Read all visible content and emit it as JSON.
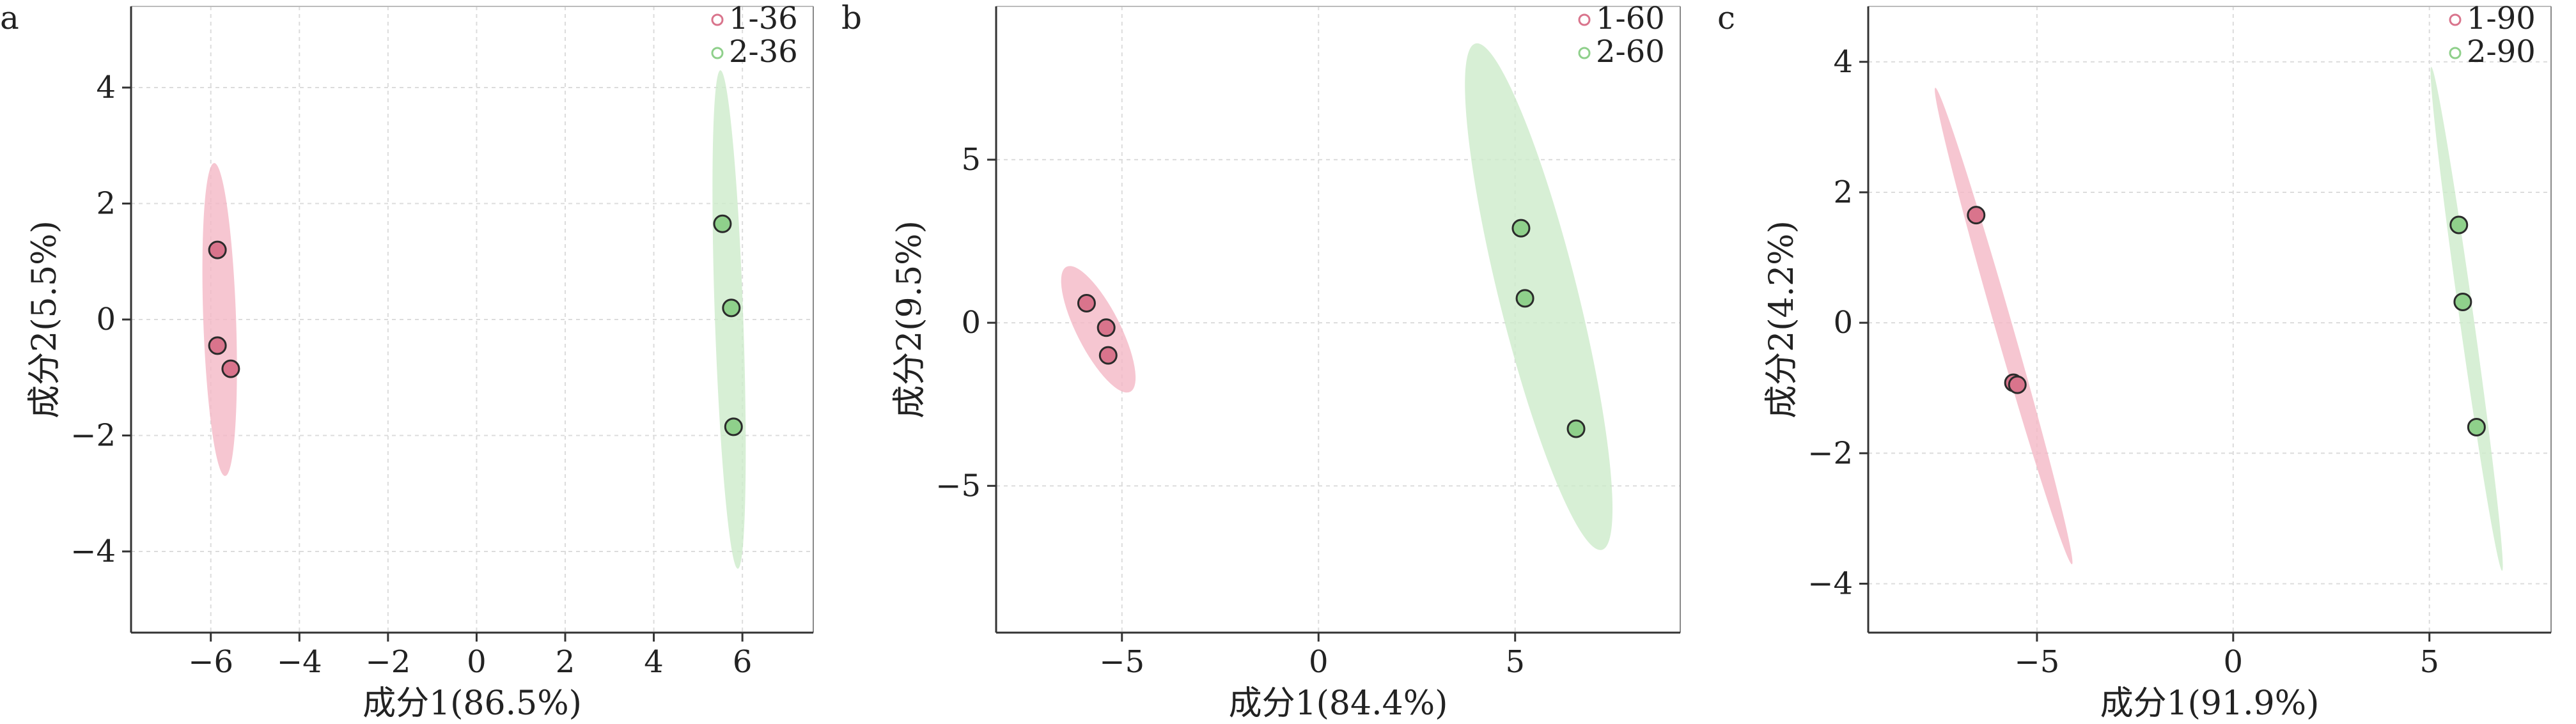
{
  "figure": {
    "colors": {
      "group1_fill": "#f4b8c6",
      "group1_point": "#d9748c",
      "group2_fill": "#cdebcb",
      "group2_point": "#8fd08b",
      "point_stroke": "#2b2b2b",
      "grid": "#dcdcdc"
    }
  },
  "chart_data": [
    {
      "type": "scatter",
      "panel_label": "a",
      "title": "",
      "xlabel": "成分1(86.5%)",
      "ylabel": "成分2(5.5%)",
      "xlim": [
        -7.8,
        7.6
      ],
      "ylim": [
        -5.4,
        5.4
      ],
      "xticks": [
        -6,
        -4,
        -2,
        0,
        2,
        4,
        6
      ],
      "yticks": [
        -4,
        -2,
        0,
        2,
        4
      ],
      "grid": true,
      "legend_position": "top-right",
      "series": [
        {
          "name": "1-36",
          "points": [
            {
              "x": -5.85,
              "y": 1.2
            },
            {
              "x": -5.85,
              "y": -0.45
            },
            {
              "x": -5.55,
              "y": -0.85
            }
          ],
          "ellipse": {
            "cx": -5.8,
            "cy": 0.0,
            "rx": 0.37,
            "ry": 2.7,
            "angle_deg": -2
          }
        },
        {
          "name": "2-36",
          "points": [
            {
              "x": 5.55,
              "y": 1.65
            },
            {
              "x": 5.75,
              "y": 0.2
            },
            {
              "x": 5.8,
              "y": -1.85
            }
          ],
          "ellipse": {
            "cx": 5.7,
            "cy": 0.0,
            "rx": 0.32,
            "ry": 4.3,
            "angle_deg": -2
          }
        }
      ]
    },
    {
      "type": "scatter",
      "panel_label": "b",
      "title": "",
      "xlabel": "成分1(84.4%)",
      "ylabel": "成分2(9.5%)",
      "xlim": [
        -8.2,
        9.2
      ],
      "ylim": [
        -9.5,
        9.7
      ],
      "xticks": [
        -5,
        0,
        5
      ],
      "yticks": [
        -5,
        0,
        5
      ],
      "grid": true,
      "legend_position": "top-right",
      "series": [
        {
          "name": "1-60",
          "points": [
            {
              "x": -5.9,
              "y": 0.6
            },
            {
              "x": -5.4,
              "y": -0.15
            },
            {
              "x": -5.35,
              "y": -1.0
            }
          ],
          "ellipse": {
            "cx": -5.6,
            "cy": -0.2,
            "rx": 0.55,
            "ry": 2.15,
            "angle_deg": -27
          }
        },
        {
          "name": "2-60",
          "points": [
            {
              "x": 5.15,
              "y": 2.9
            },
            {
              "x": 5.25,
              "y": 0.75
            },
            {
              "x": 6.55,
              "y": -3.25
            }
          ],
          "ellipse": {
            "cx": 5.6,
            "cy": 0.8,
            "rx": 1.0,
            "ry": 8.0,
            "angle_deg": -14
          }
        }
      ]
    },
    {
      "type": "scatter",
      "panel_label": "c",
      "title": "",
      "xlabel": "成分1(91.9%)",
      "ylabel": "成分2(4.2%)",
      "xlim": [
        -9.3,
        8.1
      ],
      "ylim": [
        -4.75,
        4.85
      ],
      "xticks": [
        -5,
        0,
        5
      ],
      "yticks": [
        -4,
        -2,
        0,
        2,
        4
      ],
      "grid": true,
      "legend_position": "top-right",
      "series": [
        {
          "name": "1-90",
          "points": [
            {
              "x": -6.55,
              "y": 1.65
            },
            {
              "x": -5.6,
              "y": -0.92
            },
            {
              "x": -5.5,
              "y": -0.95
            }
          ],
          "ellipse": {
            "cx": -5.85,
            "cy": -0.05,
            "rx": 0.22,
            "ry": 3.8,
            "angle_deg": -16
          }
        },
        {
          "name": "2-90",
          "points": [
            {
              "x": 5.75,
              "y": 1.5
            },
            {
              "x": 5.85,
              "y": 0.32
            },
            {
              "x": 6.2,
              "y": -1.6
            }
          ],
          "ellipse": {
            "cx": 5.95,
            "cy": 0.06,
            "rx": 0.18,
            "ry": 3.9,
            "angle_deg": -8
          }
        }
      ]
    }
  ]
}
